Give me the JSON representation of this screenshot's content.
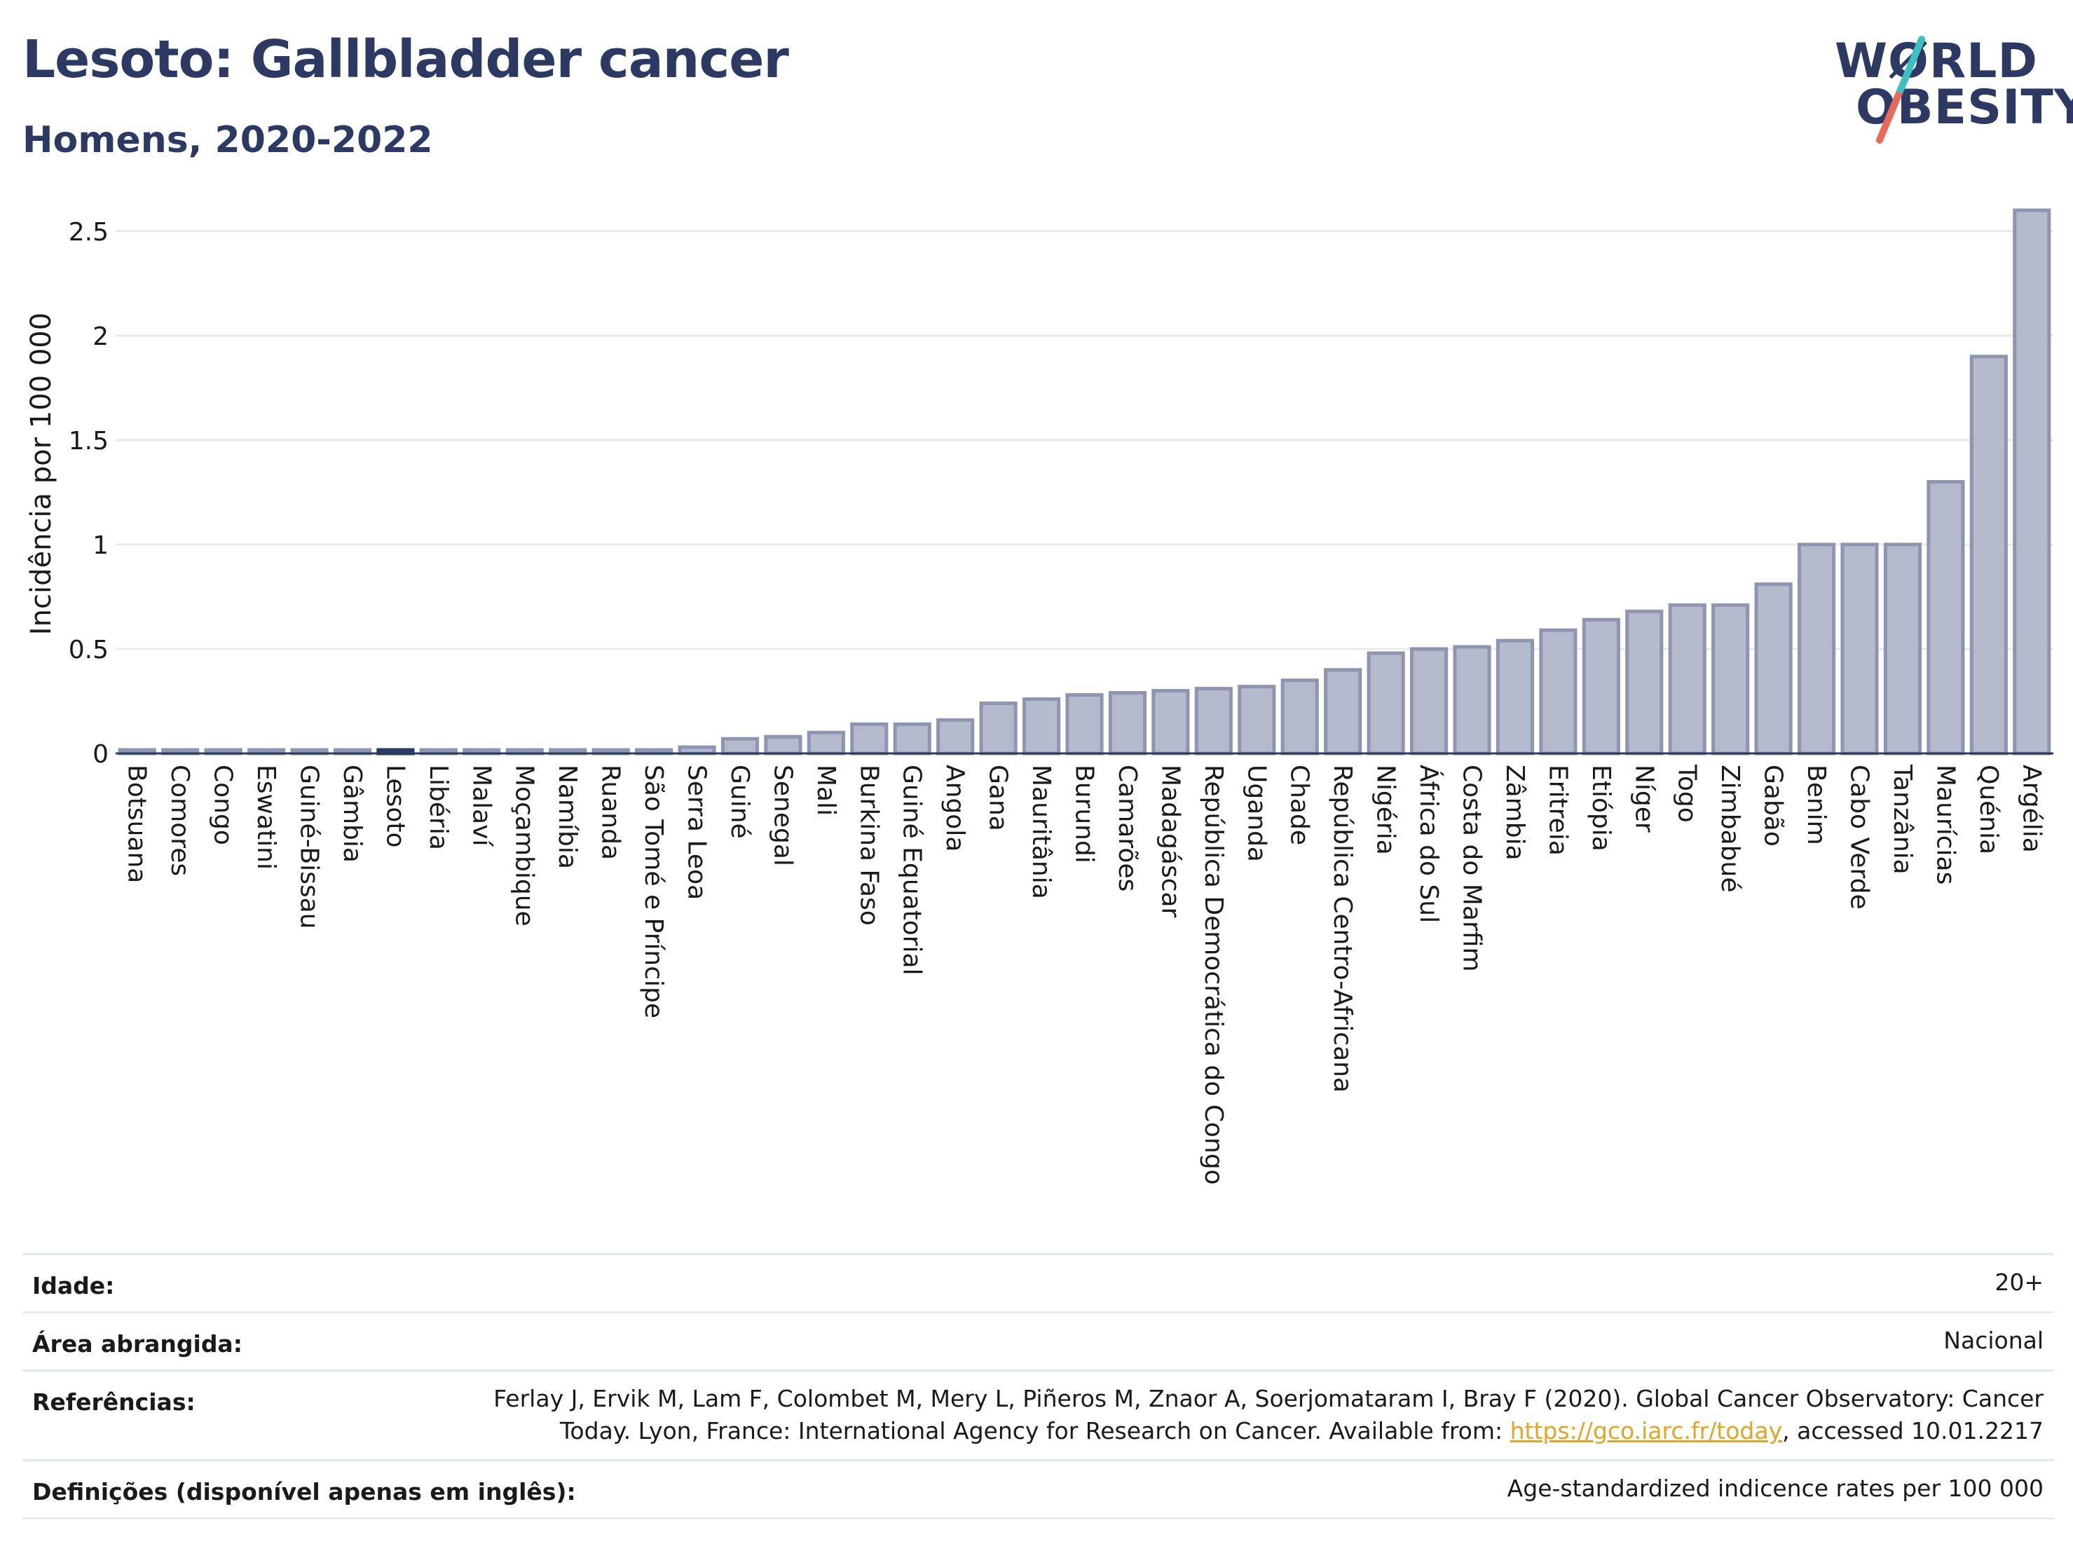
{
  "header": {
    "title": "Lesoto: Gallbladder cancer",
    "subtitle": "Homens, 2020-2022"
  },
  "logo": {
    "line1": "WØRLD",
    "line2": "OBESITY"
  },
  "colors": {
    "bar_fill": "#b4b9cc",
    "bar_stroke": "#8f95b0",
    "highlight": "#2c3a63",
    "title": "#2c3a63",
    "gridline": "#e6e8ec",
    "link": "#e0a526",
    "logo_slash_teal": "#3cc0c0",
    "logo_slash_coral": "#e86a5a"
  },
  "chart_data": {
    "type": "bar",
    "ylabel": "Incidência por 100 000",
    "ylim": [
      0,
      2.6
    ],
    "yticks": [
      0,
      0.5,
      1,
      1.5,
      2,
      2.5
    ],
    "ytick_labels": [
      "0",
      "0.5",
      "1",
      "1.5",
      "2",
      "2.5"
    ],
    "grid": true,
    "highlighted_category": "Lesoto",
    "categories": [
      "Botsuana",
      "Comores",
      "Congo",
      "Eswatini",
      "Guiné-Bissau",
      "Gâmbia",
      "Lesoto",
      "Libéria",
      "Malaví",
      "Moçambique",
      "Namíbia",
      "Ruanda",
      "São Tomé e Príncipe",
      "Serra Leoa",
      "Guiné",
      "Senegal",
      "Mali",
      "Burkina Faso",
      "Guiné Equatorial",
      "Angola",
      "Gana",
      "Mauritânia",
      "Burundi",
      "Camarões",
      "Madagáscar",
      "República Democrática do Congo",
      "Uganda",
      "Chade",
      "República Centro-Africana",
      "Nigéria",
      "África do Sul",
      "Costa do Marfim",
      "Zâmbia",
      "Eritreia",
      "Etiópia",
      "Níger",
      "Togo",
      "Zimbabué",
      "Gabão",
      "Benim",
      "Cabo Verde",
      "Tanzânia",
      "Maurícias",
      "Quénia",
      "Argélia"
    ],
    "values": [
      0,
      0,
      0,
      0,
      0,
      0,
      0,
      0,
      0,
      0,
      0,
      0,
      0,
      0.03,
      0.07,
      0.08,
      0.1,
      0.14,
      0.14,
      0.16,
      0.24,
      0.26,
      0.28,
      0.29,
      0.3,
      0.31,
      0.32,
      0.35,
      0.4,
      0.48,
      0.5,
      0.51,
      0.54,
      0.59,
      0.64,
      0.68,
      0.71,
      0.71,
      0.81,
      1.0,
      1.0,
      1.0,
      1.3,
      1.9,
      2.6
    ]
  },
  "info_table": [
    {
      "label": "Idade:",
      "value": "20+"
    },
    {
      "label": "Área abrangida:",
      "value": "Nacional"
    },
    {
      "label": "Referências:",
      "value_line1": "Ferlay J, Ervik M, Lam F, Colombet M, Mery L, Piñeros M, Znaor A, Soerjomataram I, Bray F (2020). Global Cancer Observatory: Cancer",
      "value_line2_pre": "Today. Lyon, France: International Agency for Research on Cancer. Available from: ",
      "link": "https://gco.iarc.fr/today",
      "value_line2_post": ", accessed 10.01.2217"
    },
    {
      "label": "Definições (disponível apenas em inglês):",
      "value": "Age-standardized indicence rates per 100 000"
    }
  ]
}
